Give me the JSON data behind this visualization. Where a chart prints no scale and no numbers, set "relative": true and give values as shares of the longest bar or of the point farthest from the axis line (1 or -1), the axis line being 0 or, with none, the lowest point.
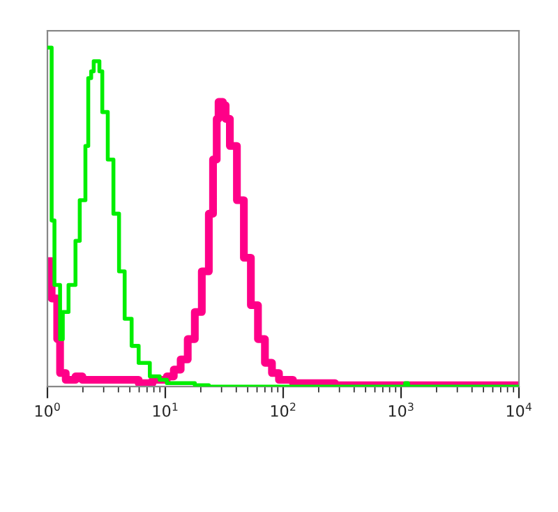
{
  "chart_data": {
    "type": "step",
    "relative": true,
    "log": "x",
    "xlim": [
      1,
      10000
    ],
    "xticks": [
      {
        "value": 1,
        "label": "10$^{0}$"
      },
      {
        "value": 10,
        "label": "10$^{1}$"
      },
      {
        "value": 100,
        "label": "10$^{2}$"
      },
      {
        "value": 1000,
        "label": "10$^{3}$"
      },
      {
        "value": 10000,
        "label": "10$^{4}$"
      }
    ],
    "grid": false,
    "legend": false,
    "series": [
      {
        "color": "#00ee00",
        "x": [
          1.0,
          1.086,
          1.086,
          1.147,
          1.147,
          1.28,
          1.35,
          1.51,
          1.73,
          1.88,
          2.1,
          2.22,
          2.35,
          2.47,
          2.68,
          2.76,
          2.92,
          3.25,
          3.63,
          4.05,
          4.52,
          5.18,
          5.94,
          7.39,
          8.95,
          10.3,
          13.5,
          17.8,
          23.4,
          53,
          1085,
          1146,
          9760
        ],
        "values": [
          1.0,
          1.0,
          0.49,
          0.49,
          0.3,
          0.14,
          0.22,
          0.3,
          0.43,
          0.55,
          0.71,
          0.91,
          0.93,
          0.96,
          0.96,
          0.93,
          0.81,
          0.67,
          0.51,
          0.34,
          0.2,
          0.12,
          0.07,
          0.03,
          0.02,
          0.01,
          0.01,
          0.004,
          0,
          0,
          0.01,
          0,
          0
        ]
      },
      {
        "color": "#ff0088",
        "x": [
          1.0,
          1.086,
          1.086,
          1.21,
          1.28,
          1.43,
          1.73,
          1.98,
          3.43,
          5.94,
          7.8,
          10.3,
          11.8,
          13.5,
          15.5,
          17.8,
          20.4,
          23.4,
          25.4,
          27.3,
          28.3,
          30.8,
          32.5,
          35.3,
          40.5,
          46.4,
          53.2,
          61.1,
          70.0,
          80.3,
          92.1,
          121,
          210,
          276,
          9760
        ],
        "values": [
          0.37,
          0.37,
          0.26,
          0.14,
          0.04,
          0.02,
          0.03,
          0.02,
          0.02,
          0.01,
          0.02,
          0.03,
          0.05,
          0.08,
          0.14,
          0.22,
          0.34,
          0.51,
          0.67,
          0.79,
          0.84,
          0.83,
          0.79,
          0.71,
          0.55,
          0.38,
          0.24,
          0.14,
          0.07,
          0.04,
          0.02,
          0.01,
          0.01,
          0.004,
          0.004
        ]
      }
    ]
  }
}
